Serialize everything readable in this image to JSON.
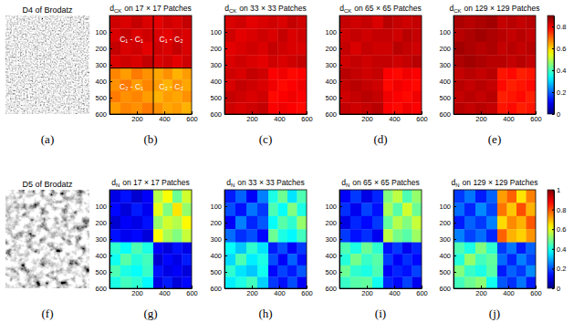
{
  "images": [
    {
      "title": "D4 of Brodatz",
      "label": "(a)"
    },
    {
      "title": "D5 of Brodatz",
      "label": "(f)"
    }
  ],
  "chart_data": [
    {
      "type": "heatmap",
      "label": "(b)",
      "title": {
        "symbol": "d",
        "subscript": "CK",
        "text": "on 17 × 17 Patches"
      },
      "xlim": [
        0,
        600
      ],
      "ylim": [
        0,
        600
      ],
      "xticks": [
        200,
        400,
        600
      ],
      "yticks": [
        100,
        200,
        300,
        400,
        500,
        600
      ],
      "x_edges": [
        0,
        80,
        160,
        240,
        320,
        390,
        460,
        530,
        600
      ],
      "y_edges": [
        0,
        80,
        160,
        240,
        320,
        390,
        460,
        530,
        600
      ],
      "color_range": [
        0,
        0.9
      ],
      "boundary": 320,
      "annotations": [
        {
          "text": "C₁ - C₁",
          "x": 160,
          "y": 150
        },
        {
          "text": "C₁ - C₂",
          "x": 450,
          "y": 150
        },
        {
          "text": "C₂ - C₁",
          "x": 160,
          "y": 440
        },
        {
          "text": "C₂ - C₂",
          "x": 450,
          "y": 440
        }
      ],
      "cells": [
        [
          0.83,
          0.82,
          0.84,
          0.82,
          0.81,
          0.83,
          0.82,
          0.84
        ],
        [
          0.82,
          0.84,
          0.82,
          0.83,
          0.82,
          0.81,
          0.83,
          0.82
        ],
        [
          0.84,
          0.82,
          0.83,
          0.81,
          0.83,
          0.82,
          0.84,
          0.82
        ],
        [
          0.82,
          0.83,
          0.82,
          0.84,
          0.82,
          0.83,
          0.81,
          0.83
        ],
        [
          0.67,
          0.65,
          0.68,
          0.66,
          0.64,
          0.66,
          0.63,
          0.65
        ],
        [
          0.66,
          0.68,
          0.65,
          0.67,
          0.65,
          0.63,
          0.66,
          0.64
        ],
        [
          0.68,
          0.66,
          0.67,
          0.65,
          0.63,
          0.65,
          0.64,
          0.66
        ],
        [
          0.65,
          0.67,
          0.66,
          0.68,
          0.66,
          0.64,
          0.65,
          0.63
        ]
      ]
    },
    {
      "type": "heatmap",
      "label": "(c)",
      "title": {
        "symbol": "d",
        "subscript": "CK",
        "text": "on 33 × 33 Patches"
      },
      "xlim": [
        0,
        600
      ],
      "ylim": [
        0,
        600
      ],
      "xticks": [
        200,
        400,
        600
      ],
      "yticks": [
        100,
        200,
        300,
        400,
        500,
        600
      ],
      "x_edges": [
        0,
        80,
        160,
        240,
        320,
        390,
        460,
        530,
        600
      ],
      "y_edges": [
        0,
        80,
        160,
        240,
        320,
        390,
        460,
        530,
        600
      ],
      "color_range": [
        0,
        0.9
      ],
      "cells": [
        [
          0.82,
          0.83,
          0.81,
          0.82,
          0.83,
          0.82,
          0.84,
          0.83
        ],
        [
          0.83,
          0.81,
          0.82,
          0.83,
          0.82,
          0.84,
          0.82,
          0.83
        ],
        [
          0.81,
          0.82,
          0.83,
          0.82,
          0.84,
          0.83,
          0.82,
          0.82
        ],
        [
          0.82,
          0.83,
          0.82,
          0.81,
          0.83,
          0.82,
          0.83,
          0.84
        ],
        [
          0.83,
          0.82,
          0.84,
          0.83,
          0.79,
          0.8,
          0.78,
          0.79
        ],
        [
          0.82,
          0.84,
          0.83,
          0.82,
          0.8,
          0.78,
          0.79,
          0.8
        ],
        [
          0.84,
          0.83,
          0.82,
          0.83,
          0.78,
          0.79,
          0.8,
          0.79
        ],
        [
          0.83,
          0.82,
          0.83,
          0.84,
          0.79,
          0.8,
          0.79,
          0.78
        ]
      ]
    },
    {
      "type": "heatmap",
      "label": "(d)",
      "title": {
        "symbol": "d",
        "subscript": "CK",
        "text": "on 65 × 65 Patches"
      },
      "xlim": [
        0,
        600
      ],
      "ylim": [
        0,
        600
      ],
      "xticks": [
        200,
        400,
        600
      ],
      "yticks": [
        100,
        200,
        300,
        400,
        500,
        600
      ],
      "x_edges": [
        0,
        80,
        160,
        240,
        320,
        390,
        460,
        530,
        600
      ],
      "y_edges": [
        0,
        80,
        160,
        240,
        320,
        390,
        460,
        530,
        600
      ],
      "color_range": [
        0,
        0.9
      ],
      "cells": [
        [
          0.84,
          0.83,
          0.84,
          0.82,
          0.85,
          0.84,
          0.83,
          0.84
        ],
        [
          0.83,
          0.84,
          0.83,
          0.84,
          0.84,
          0.83,
          0.85,
          0.84
        ],
        [
          0.84,
          0.82,
          0.84,
          0.83,
          0.83,
          0.85,
          0.84,
          0.83
        ],
        [
          0.83,
          0.84,
          0.83,
          0.84,
          0.84,
          0.83,
          0.84,
          0.85
        ],
        [
          0.85,
          0.84,
          0.83,
          0.84,
          0.79,
          0.78,
          0.8,
          0.79
        ],
        [
          0.84,
          0.85,
          0.84,
          0.83,
          0.78,
          0.8,
          0.79,
          0.78
        ],
        [
          0.83,
          0.84,
          0.85,
          0.84,
          0.8,
          0.79,
          0.78,
          0.8
        ],
        [
          0.84,
          0.83,
          0.84,
          0.85,
          0.79,
          0.78,
          0.8,
          0.79
        ]
      ]
    },
    {
      "type": "heatmap",
      "label": "(e)",
      "title": {
        "symbol": "d",
        "subscript": "CK",
        "text": "on 129 × 129 Patches"
      },
      "xlim": [
        0,
        600
      ],
      "ylim": [
        0,
        600
      ],
      "xticks": [
        200,
        400,
        600
      ],
      "yticks": [
        100,
        200,
        300,
        400,
        500,
        600
      ],
      "x_edges": [
        0,
        80,
        160,
        240,
        320,
        390,
        460,
        530,
        600
      ],
      "y_edges": [
        0,
        80,
        160,
        240,
        320,
        390,
        460,
        530,
        600
      ],
      "color_range": [
        0,
        0.9
      ],
      "colorbar_ticks": [
        0,
        0.2,
        0.4,
        0.6,
        0.8
      ],
      "cells": [
        [
          0.86,
          0.85,
          0.86,
          0.87,
          0.84,
          0.85,
          0.84,
          0.85
        ],
        [
          0.85,
          0.86,
          0.87,
          0.86,
          0.85,
          0.84,
          0.85,
          0.84
        ],
        [
          0.87,
          0.86,
          0.85,
          0.86,
          0.84,
          0.85,
          0.84,
          0.85
        ],
        [
          0.86,
          0.87,
          0.86,
          0.85,
          0.85,
          0.84,
          0.85,
          0.84
        ],
        [
          0.84,
          0.85,
          0.84,
          0.85,
          0.77,
          0.78,
          0.76,
          0.77
        ],
        [
          0.85,
          0.84,
          0.85,
          0.84,
          0.78,
          0.76,
          0.77,
          0.78
        ],
        [
          0.84,
          0.85,
          0.84,
          0.85,
          0.76,
          0.77,
          0.78,
          0.76
        ],
        [
          0.85,
          0.84,
          0.85,
          0.84,
          0.77,
          0.78,
          0.76,
          0.77
        ]
      ]
    },
    {
      "type": "heatmap",
      "label": "(g)",
      "title": {
        "symbol": "d",
        "subscript": "N",
        "text": "on 17 × 17 Patches"
      },
      "xlim": [
        0,
        600
      ],
      "ylim": [
        0,
        600
      ],
      "xticks": [
        200,
        400,
        600
      ],
      "yticks": [
        100,
        200,
        300,
        400,
        500,
        600
      ],
      "x_edges": [
        0,
        80,
        160,
        240,
        320,
        390,
        460,
        530,
        600
      ],
      "y_edges": [
        0,
        80,
        160,
        240,
        320,
        390,
        460,
        530,
        600
      ],
      "color_range": [
        0,
        1
      ],
      "cells": [
        [
          0.1,
          0.14,
          0.08,
          0.12,
          0.55,
          0.62,
          0.48,
          0.58
        ],
        [
          0.13,
          0.09,
          0.15,
          0.11,
          0.6,
          0.5,
          0.65,
          0.52
        ],
        [
          0.08,
          0.12,
          0.1,
          0.14,
          0.52,
          0.58,
          0.55,
          0.63
        ],
        [
          0.14,
          0.11,
          0.13,
          0.09,
          0.62,
          0.54,
          0.5,
          0.57
        ],
        [
          0.42,
          0.38,
          0.45,
          0.4,
          0.12,
          0.09,
          0.14,
          0.1
        ],
        [
          0.39,
          0.46,
          0.41,
          0.44,
          0.08,
          0.13,
          0.1,
          0.15
        ],
        [
          0.45,
          0.4,
          0.38,
          0.43,
          0.14,
          0.1,
          0.12,
          0.09
        ],
        [
          0.4,
          0.44,
          0.42,
          0.37,
          0.1,
          0.15,
          0.09,
          0.13
        ]
      ]
    },
    {
      "type": "heatmap",
      "label": "(h)",
      "title": {
        "symbol": "d",
        "subscript": "N",
        "text": "on 33 × 33 Patches"
      },
      "xlim": [
        0,
        600
      ],
      "ylim": [
        0,
        600
      ],
      "xticks": [
        200,
        400,
        600
      ],
      "yticks": [
        100,
        200,
        300,
        400,
        500,
        600
      ],
      "x_edges": [
        0,
        80,
        160,
        240,
        320,
        390,
        460,
        530,
        600
      ],
      "y_edges": [
        0,
        80,
        160,
        240,
        320,
        390,
        460,
        530,
        600
      ],
      "color_range": [
        0,
        1
      ],
      "cells": [
        [
          0.15,
          0.22,
          0.12,
          0.25,
          0.4,
          0.48,
          0.35,
          0.45
        ],
        [
          0.2,
          0.14,
          0.24,
          0.18,
          0.45,
          0.38,
          0.5,
          0.4
        ],
        [
          0.12,
          0.25,
          0.16,
          0.21,
          0.38,
          0.46,
          0.42,
          0.52
        ],
        [
          0.23,
          0.17,
          0.2,
          0.13,
          0.48,
          0.4,
          0.37,
          0.44
        ],
        [
          0.38,
          0.32,
          0.42,
          0.35,
          0.15,
          0.2,
          0.12,
          0.18
        ],
        [
          0.34,
          0.45,
          0.36,
          0.4,
          0.2,
          0.12,
          0.22,
          0.14
        ],
        [
          0.42,
          0.35,
          0.32,
          0.39,
          0.13,
          0.19,
          0.15,
          0.21
        ],
        [
          0.36,
          0.4,
          0.44,
          0.33,
          0.18,
          0.14,
          0.2,
          0.12
        ]
      ]
    },
    {
      "type": "heatmap",
      "label": "(i)",
      "title": {
        "symbol": "d",
        "subscript": "N",
        "text": "on 65 × 65 Patches"
      },
      "xlim": [
        0,
        600
      ],
      "ylim": [
        0,
        600
      ],
      "xticks": [
        200,
        400,
        600
      ],
      "yticks": [
        100,
        200,
        300,
        400,
        500,
        600
      ],
      "x_edges": [
        0,
        80,
        160,
        240,
        320,
        390,
        460,
        530,
        600
      ],
      "y_edges": [
        0,
        80,
        160,
        240,
        320,
        390,
        460,
        530,
        600
      ],
      "color_range": [
        0,
        1
      ],
      "cells": [
        [
          0.12,
          0.18,
          0.1,
          0.16,
          0.5,
          0.56,
          0.45,
          0.52
        ],
        [
          0.17,
          0.11,
          0.19,
          0.14,
          0.54,
          0.46,
          0.58,
          0.48
        ],
        [
          0.1,
          0.16,
          0.13,
          0.18,
          0.47,
          0.55,
          0.5,
          0.57
        ],
        [
          0.18,
          0.14,
          0.17,
          0.11,
          0.56,
          0.49,
          0.46,
          0.53
        ],
        [
          0.45,
          0.4,
          0.48,
          0.42,
          0.14,
          0.18,
          0.11,
          0.16
        ],
        [
          0.41,
          0.49,
          0.43,
          0.46,
          0.18,
          0.12,
          0.17,
          0.13
        ],
        [
          0.48,
          0.42,
          0.4,
          0.45,
          0.12,
          0.16,
          0.14,
          0.19
        ],
        [
          0.43,
          0.46,
          0.47,
          0.39,
          0.16,
          0.13,
          0.19,
          0.11
        ]
      ]
    },
    {
      "type": "heatmap",
      "label": "(j)",
      "title": {
        "symbol": "d",
        "subscript": "N",
        "text": "on 129 × 129 Patches"
      },
      "xlim": [
        0,
        600
      ],
      "ylim": [
        0,
        600
      ],
      "xticks": [
        200,
        400,
        600
      ],
      "yticks": [
        100,
        200,
        300,
        400,
        500,
        600
      ],
      "x_edges": [
        0,
        80,
        160,
        240,
        320,
        390,
        460,
        530,
        600
      ],
      "y_edges": [
        0,
        80,
        160,
        240,
        320,
        390,
        460,
        530,
        600
      ],
      "color_range": [
        0,
        1
      ],
      "colorbar_ticks": [
        0,
        0.2,
        0.4,
        0.6,
        0.8,
        1
      ],
      "cells": [
        [
          0.18,
          0.24,
          0.15,
          0.22,
          0.72,
          0.78,
          0.65,
          0.75
        ],
        [
          0.23,
          0.16,
          0.26,
          0.19,
          0.76,
          0.68,
          0.8,
          0.7
        ],
        [
          0.15,
          0.22,
          0.18,
          0.25,
          0.66,
          0.74,
          0.7,
          0.79
        ],
        [
          0.25,
          0.19,
          0.23,
          0.16,
          0.78,
          0.7,
          0.67,
          0.73
        ],
        [
          0.45,
          0.4,
          0.5,
          0.42,
          0.18,
          0.24,
          0.15,
          0.22
        ],
        [
          0.41,
          0.52,
          0.44,
          0.47,
          0.23,
          0.16,
          0.25,
          0.19
        ],
        [
          0.5,
          0.43,
          0.4,
          0.46,
          0.15,
          0.22,
          0.18,
          0.26
        ],
        [
          0.44,
          0.48,
          0.51,
          0.39,
          0.21,
          0.17,
          0.24,
          0.15
        ]
      ]
    }
  ]
}
